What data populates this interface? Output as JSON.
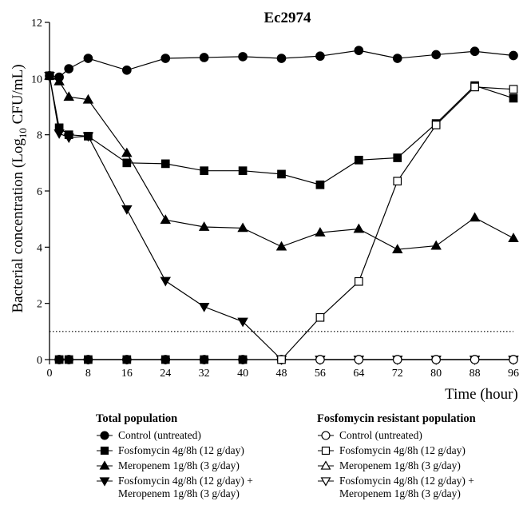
{
  "chart_data": {
    "type": "line",
    "title": "Ec2974",
    "xlabel": "Time (hour)",
    "ylabel_main": "Bacterial concentration (Log",
    "ylabel_sub": "10",
    "ylabel_end": " CFU/mL)",
    "xlim": [
      0,
      96
    ],
    "ylim": [
      0,
      12
    ],
    "xticks": [
      0,
      8,
      16,
      24,
      32,
      40,
      48,
      56,
      64,
      72,
      80,
      88,
      96
    ],
    "yticks": [
      0,
      2,
      4,
      6,
      8,
      10,
      12
    ],
    "threshold_line": 1,
    "series": [
      {
        "name": "Control (untreated)",
        "group": "total",
        "marker": "circle",
        "filled": true,
        "x": [
          0,
          2,
          4,
          8,
          16,
          24,
          32,
          40,
          48,
          56,
          64,
          72,
          80,
          88,
          96
        ],
        "y": [
          10.1,
          10.05,
          10.35,
          10.72,
          10.3,
          10.72,
          10.75,
          10.78,
          10.72,
          10.8,
          11.0,
          10.72,
          10.85,
          10.97,
          10.82
        ]
      },
      {
        "name": "Fosfomycin 4g/8h (12 g/day)",
        "group": "total",
        "marker": "square",
        "filled": true,
        "x": [
          0,
          2,
          4,
          8,
          16,
          24,
          32,
          40,
          48,
          56,
          64,
          72,
          80,
          88,
          96
        ],
        "y": [
          10.1,
          8.25,
          8.0,
          7.95,
          7.0,
          6.97,
          6.72,
          6.72,
          6.6,
          6.22,
          7.1,
          7.18,
          8.4,
          9.75,
          9.3
        ]
      },
      {
        "name": "Meropenem 1g/8h (3 g/day)",
        "group": "total",
        "marker": "triangle-up",
        "filled": true,
        "x": [
          0,
          2,
          4,
          8,
          16,
          24,
          32,
          40,
          48,
          56,
          64,
          72,
          80,
          88,
          96
        ],
        "y": [
          10.1,
          9.9,
          9.35,
          9.25,
          7.35,
          4.97,
          4.72,
          4.68,
          4.02,
          4.52,
          4.65,
          3.92,
          4.05,
          5.05,
          4.32
        ]
      },
      {
        "name": "Fosfomycin 4g/8h (12 g/day) +\nMeropenem 1g/8h (3 g/day)",
        "group": "total",
        "marker": "triangle-down",
        "filled": true,
        "x": [
          0,
          2,
          4,
          8,
          16,
          24,
          32,
          40,
          48
        ],
        "y": [
          10.1,
          8.05,
          7.9,
          7.95,
          5.35,
          2.8,
          1.88,
          1.35,
          0
        ]
      },
      {
        "name": "Fosfomycin 4g/8h (12 g/day) +\nMeropenem 1g/8h (3 g/day)",
        "group": "total",
        "marker": "triangle-down",
        "filled": true,
        "x": [
          56,
          64,
          72,
          80,
          88,
          96
        ],
        "y": [
          0,
          0,
          0,
          0,
          0,
          0
        ]
      },
      {
        "name": "Control (untreated)",
        "group": "resistant",
        "marker": "circle",
        "filled": false,
        "x": [
          2,
          4,
          8,
          16,
          24,
          32,
          40,
          48,
          56,
          64,
          72,
          80,
          88,
          96
        ],
        "y": [
          0,
          0,
          0,
          0,
          0,
          0,
          0,
          0,
          0,
          0,
          0,
          0,
          0,
          0
        ]
      },
      {
        "name": "Fosfomycin 4g/8h (12 g/day)",
        "group": "resistant",
        "marker": "square",
        "filled": false,
        "x": [
          48,
          56,
          64,
          72,
          80,
          88,
          96
        ],
        "y": [
          0,
          1.5,
          2.78,
          6.35,
          8.35,
          9.7,
          9.62
        ]
      },
      {
        "name": "Fosfomycin 4g/8h (12 g/day)",
        "group": "resistant",
        "marker": "square",
        "filled": true,
        "x": [
          2,
          4,
          8,
          16,
          24,
          32,
          40
        ],
        "y": [
          0,
          0,
          0,
          0,
          0,
          0,
          0
        ]
      }
    ]
  },
  "legend": {
    "total": {
      "title": "Total population",
      "items": [
        {
          "label": "Control (untreated)",
          "marker": "circle",
          "filled": true
        },
        {
          "label": "Fosfomycin 4g/8h (12 g/day)",
          "marker": "square",
          "filled": true
        },
        {
          "label": "Meropenem 1g/8h (3 g/day)",
          "marker": "triangle-up",
          "filled": true
        },
        {
          "label": "Fosfomycin 4g/8h (12 g/day) +\nMeropenem 1g/8h (3 g/day)",
          "marker": "triangle-down",
          "filled": true
        }
      ]
    },
    "resistant": {
      "title": "Fosfomycin resistant population",
      "items": [
        {
          "label": "Control (untreated)",
          "marker": "circle",
          "filled": false
        },
        {
          "label": "Fosfomycin 4g/8h (12 g/day)",
          "marker": "square",
          "filled": false
        },
        {
          "label": "Meropenem 1g/8h (3 g/day)",
          "marker": "triangle-up",
          "filled": false
        },
        {
          "label": "Fosfomycin 4g/8h (12 g/day) +\nMeropenem 1g/8h (3 g/day)",
          "marker": "triangle-down",
          "filled": false
        }
      ]
    }
  }
}
